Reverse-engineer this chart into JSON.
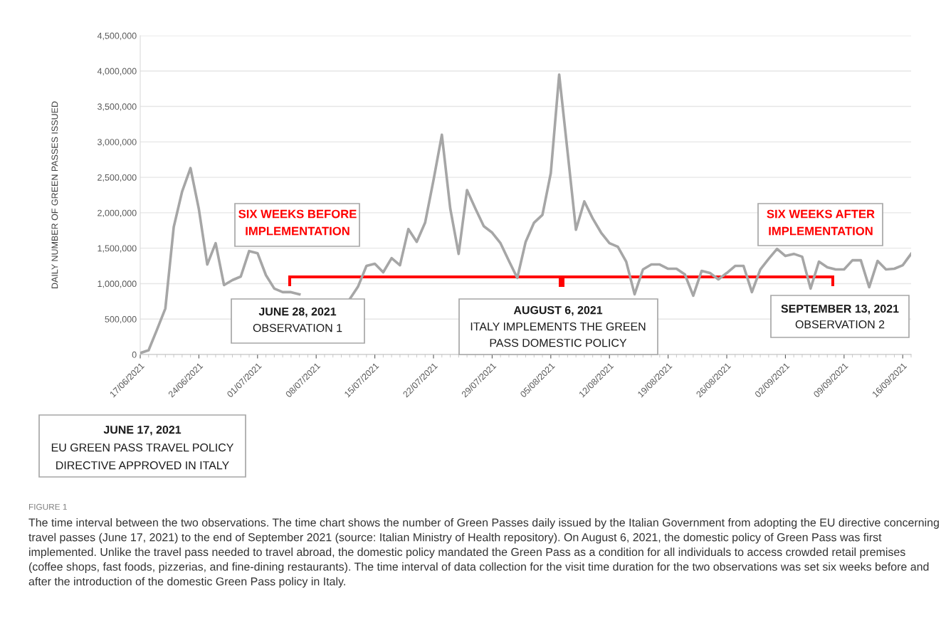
{
  "chart_data": {
    "type": "line",
    "ylabel": "DAILY NUMBER OF GREEN PASSES ISSUED",
    "x": [
      "2021-06-17",
      "2021-06-18",
      "2021-06-19",
      "2021-06-20",
      "2021-06-21",
      "2021-06-22",
      "2021-06-23",
      "2021-06-24",
      "2021-06-25",
      "2021-06-26",
      "2021-06-27",
      "2021-06-28",
      "2021-06-29",
      "2021-06-30",
      "2021-07-01",
      "2021-07-02",
      "2021-07-03",
      "2021-07-04",
      "2021-07-05",
      "2021-07-06",
      "2021-07-07",
      "2021-07-08",
      "2021-07-09",
      "2021-07-10",
      "2021-07-11",
      "2021-07-12",
      "2021-07-13",
      "2021-07-14",
      "2021-07-15",
      "2021-07-16",
      "2021-07-17",
      "2021-07-18",
      "2021-07-19",
      "2021-07-20",
      "2021-07-21",
      "2021-07-22",
      "2021-07-23",
      "2021-07-24",
      "2021-07-25",
      "2021-07-26",
      "2021-07-27",
      "2021-07-28",
      "2021-07-29",
      "2021-07-30",
      "2021-07-31",
      "2021-08-01",
      "2021-08-02",
      "2021-08-03",
      "2021-08-04",
      "2021-08-05",
      "2021-08-06",
      "2021-08-07",
      "2021-08-08",
      "2021-08-09",
      "2021-08-10",
      "2021-08-11",
      "2021-08-12",
      "2021-08-13",
      "2021-08-14",
      "2021-08-15",
      "2021-08-16",
      "2021-08-17",
      "2021-08-18",
      "2021-08-19",
      "2021-08-20",
      "2021-08-21",
      "2021-08-22",
      "2021-08-23",
      "2021-08-24",
      "2021-08-25",
      "2021-08-26",
      "2021-08-27",
      "2021-08-28",
      "2021-08-29",
      "2021-08-30",
      "2021-08-31",
      "2021-09-01",
      "2021-09-02",
      "2021-09-03",
      "2021-09-04",
      "2021-09-05",
      "2021-09-06",
      "2021-09-07",
      "2021-09-08",
      "2021-09-09",
      "2021-09-10",
      "2021-09-11",
      "2021-09-12",
      "2021-09-13",
      "2021-09-14",
      "2021-09-15",
      "2021-09-16",
      "2021-09-17"
    ],
    "series": [
      {
        "color": "#a6a6a6",
        "values": [
          20000,
          60000,
          350000,
          650000,
          1800000,
          2300000,
          2630000,
          2050000,
          1270000,
          1570000,
          980000,
          1050000,
          1100000,
          1460000,
          1430000,
          1120000,
          930000,
          880000,
          880000,
          850000,
          null,
          null,
          null,
          null,
          null,
          780000,
          960000,
          1250000,
          1280000,
          1160000,
          1360000,
          1260000,
          1770000,
          1590000,
          1860000,
          2460000,
          3100000,
          2060000,
          1420000,
          2320000,
          2060000,
          1810000,
          1720000,
          1570000,
          1320000,
          1080000,
          1590000,
          1860000,
          1970000,
          2560000,
          3950000,
          2860000,
          1760000,
          2160000,
          1920000,
          1720000,
          1570000,
          1520000,
          1310000,
          850000,
          1200000,
          1270000,
          1270000,
          1210000,
          1210000,
          1130000,
          830000,
          1180000,
          1150000,
          1060000,
          1150000,
          1250000,
          1250000,
          880000,
          1200000,
          1350000,
          1490000,
          1390000,
          1420000,
          1380000,
          930000,
          1310000,
          1230000,
          1200000,
          1200000,
          1330000,
          1330000,
          950000,
          1320000,
          1200000,
          1210000,
          1260000,
          1420000
        ]
      }
    ],
    "xlim": [
      "2021-06-17",
      "2021-09-17"
    ],
    "xticks": [
      {
        "value": "2021-06-17",
        "label": "17/06/2021"
      },
      {
        "value": "2021-06-24",
        "label": "24/06/2021"
      },
      {
        "value": "2021-07-01",
        "label": "01/07/2021"
      },
      {
        "value": "2021-07-08",
        "label": "08/07/2021"
      },
      {
        "value": "2021-07-15",
        "label": "15/07/2021"
      },
      {
        "value": "2021-07-22",
        "label": "22/07/2021"
      },
      {
        "value": "2021-07-29",
        "label": "29/07/2021"
      },
      {
        "value": "2021-08-05",
        "label": "05/08/2021"
      },
      {
        "value": "2021-08-12",
        "label": "12/08/2021"
      },
      {
        "value": "2021-08-19",
        "label": "19/08/2021"
      },
      {
        "value": "2021-08-26",
        "label": "26/08/2021"
      },
      {
        "value": "2021-09-02",
        "label": "02/09/2021"
      },
      {
        "value": "2021-09-09",
        "label": "09/09/2021"
      },
      {
        "value": "2021-09-16",
        "label": "16/09/2021"
      }
    ],
    "ylim": [
      0,
      4500000
    ],
    "yticks": [
      0,
      {
        "value": 500000,
        "label": "500,000"
      },
      {
        "value": 1000000,
        "label": "1,000,000"
      },
      {
        "value": 1500000,
        "label": "1,500,000"
      },
      {
        "value": 2000000,
        "label": "2,000,000"
      },
      {
        "value": 2500000,
        "label": "2,500,000"
      },
      {
        "value": 3000000,
        "label": "3,000,000"
      },
      {
        "value": 3500000,
        "label": "3,500,000"
      },
      {
        "value": 4000000,
        "label": "4,000,000"
      },
      {
        "value": 4500000,
        "label": "4,500,000"
      }
    ],
    "grid": "y",
    "marker": "none",
    "line_style": "solid",
    "legend": false,
    "annotations": [
      "SIX WEEKS BEFORE",
      "IMPLEMENTATION",
      "JUNE 28, 2021",
      "OBSERVATION 1",
      "AUGUST 6, 2021",
      "ITALY IMPLEMENTS THE GREEN",
      "PASS DOMESTIC POLICY",
      "SIX WEEKS AFTER",
      "IMPLEMENTATION",
      "SEPTEMBER 13, 2021",
      "OBSERVATION 2",
      "JUNE 17, 2021",
      "EU GREEN PASS TRAVEL POLICY",
      "DIRECTIVE APPROVED IN ITALY",
      "FIGURE 1",
      "The time interval between the two observations. The time chart shows the number of Green Passes daily issued by the Italian Government from adopting the EU directive concerning travel passes (June 17, 2021) to the end of September 2021 (source: Italian Ministry of Health repository). On August 6, 2021, the domestic policy of Green Pass was first implemented. Unlike the travel pass needed to travel abroad, the domestic policy mandated the Green Pass as a condition for all individuals to access crowded retail premises (coffee shops, fast foods, pizzerias, and fine-dining restaurants). The time interval of data collection for the visit time duration for the two observations was set six weeks before and after the introduction of the domestic Green Pass policy in Italy."
    ]
  }
}
